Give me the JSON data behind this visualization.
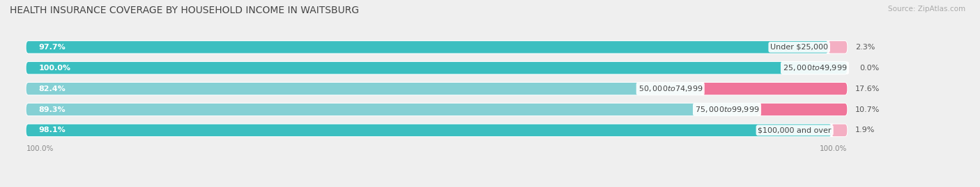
{
  "title": "HEALTH INSURANCE COVERAGE BY HOUSEHOLD INCOME IN WAITSBURG",
  "source": "Source: ZipAtlas.com",
  "categories": [
    "Under $25,000",
    "$25,000 to $49,999",
    "$50,000 to $74,999",
    "$75,000 to $99,999",
    "$100,000 and over"
  ],
  "with_coverage": [
    97.7,
    100.0,
    82.4,
    89.3,
    98.1
  ],
  "without_coverage": [
    2.3,
    0.0,
    17.6,
    10.7,
    1.9
  ],
  "teal_colors": [
    "#3bbfc0",
    "#3bbfc0",
    "#85d0d4",
    "#85d0d4",
    "#3bbfc0"
  ],
  "pink_colors": [
    "#f4afc3",
    "#f4afc3",
    "#f0759a",
    "#f0759a",
    "#f4afc3"
  ],
  "color_with_legend": "#3bbfc0",
  "color_without_legend": "#f0759a",
  "bg_color": "#efefef",
  "bar_bg_color": "#e2e2ea",
  "title_fontsize": 10,
  "label_fontsize": 8,
  "source_fontsize": 7.5,
  "bar_height": 0.58,
  "total_width": 100,
  "x_left_label": "100.0%",
  "x_right_label": "100.0%"
}
